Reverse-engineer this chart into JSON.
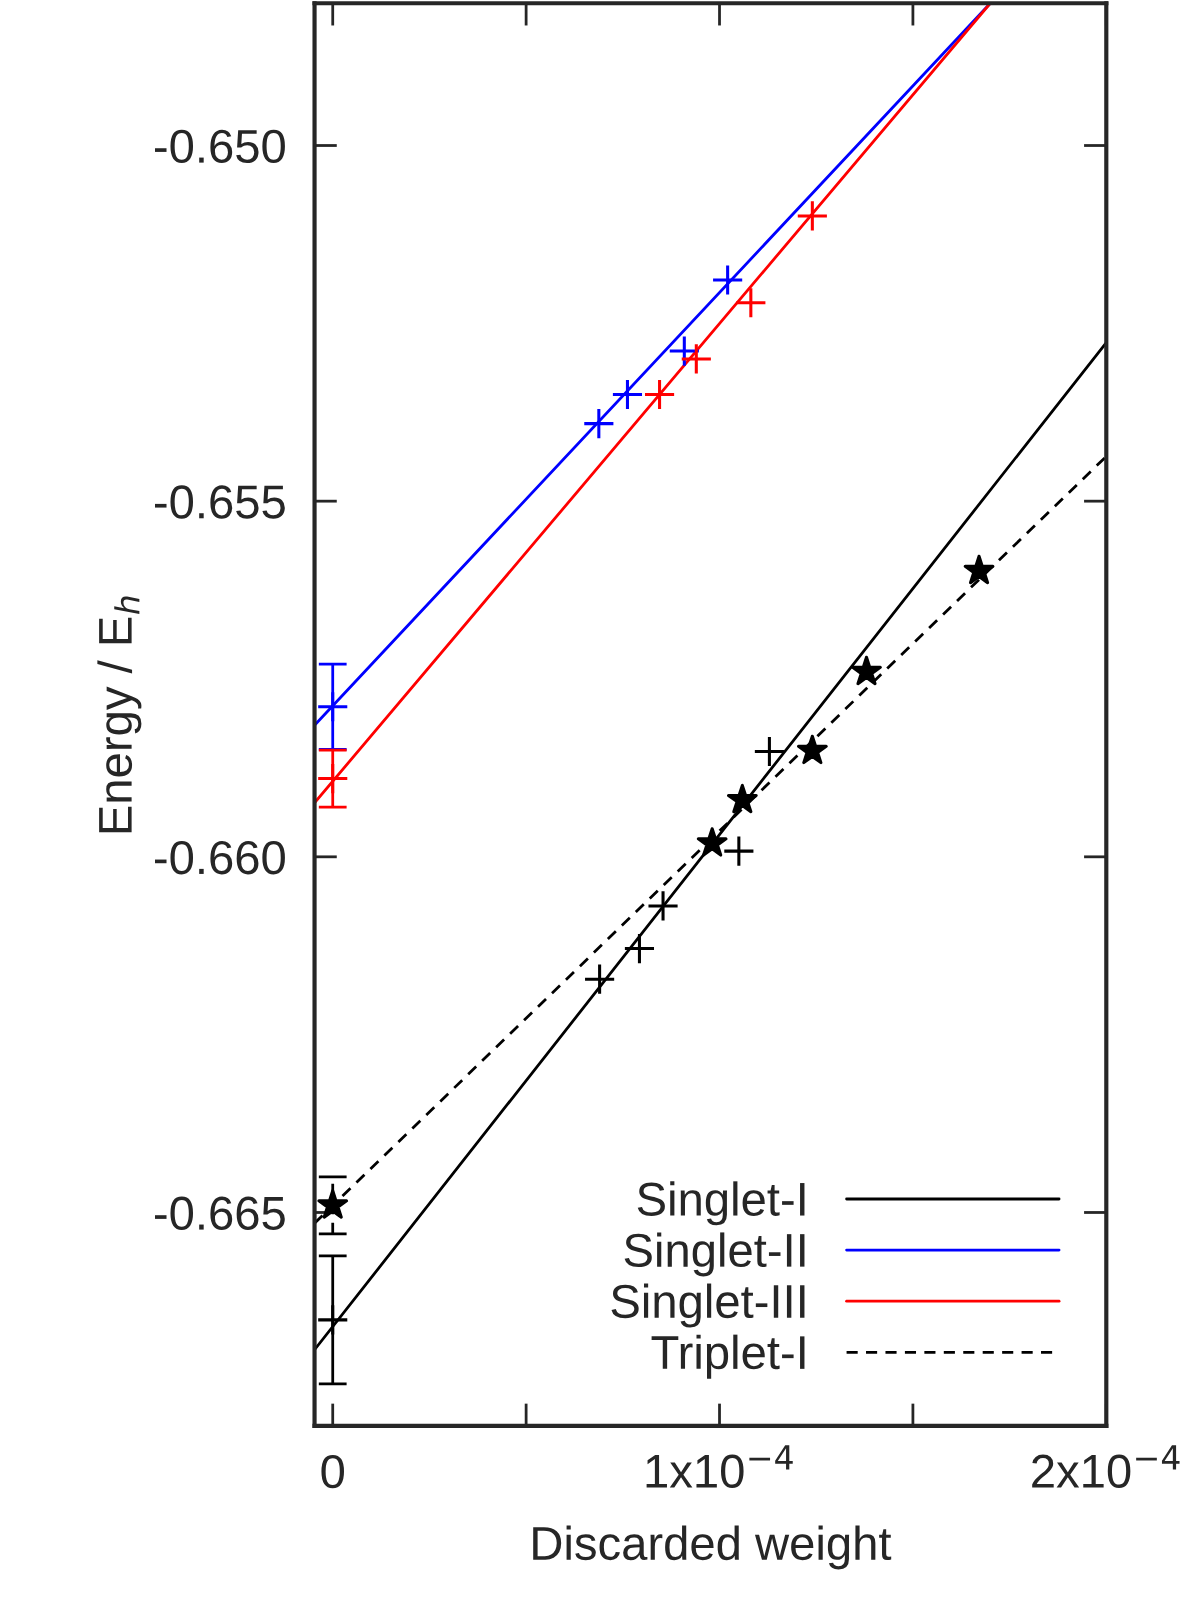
{
  "chart_data": {
    "type": "scatter",
    "xlabel": "Discarded weight",
    "ylabel": "Energy / E$_{h}$",
    "xlim": [
      -4.7e-06,
      0.0002
    ],
    "ylim": [
      -0.668,
      -0.648
    ],
    "xticks": [
      0,
      {
        "value": 5e-05,
        "label": null
      },
      {
        "value": 0.0001,
        "label": "1x10$^{−4}$"
      },
      {
        "value": 0.00015,
        "label": null
      },
      {
        "value": 0.0002,
        "label": "2x10$^{−4}$"
      }
    ],
    "yticks": [
      {
        "value": -0.665,
        "label": "-0.665"
      },
      {
        "value": -0.66,
        "label": "-0.660"
      },
      {
        "value": -0.655,
        "label": "-0.655"
      },
      {
        "value": -0.65,
        "label": "-0.650"
      }
    ],
    "grid": false,
    "legend": "bottom right",
    "series": [
      {
        "name": "Singlet-I",
        "color": "#000000",
        "marker": "cross",
        "line_style": "solid",
        "x": [
          0,
          6.9e-05,
          7.93e-05,
          8.54e-05,
          0.000105,
          0.0001129
        ],
        "values": [
          -0.66651,
          -0.66172,
          -0.66129,
          -0.66069,
          -0.65992,
          -0.65852
        ],
        "errors": [
          0.0009,
          null,
          null,
          null,
          null,
          null
        ]
      },
      {
        "name": "Singlet-II",
        "color": "#0000ff",
        "marker": "cross",
        "line_style": "solid",
        "x": [
          0,
          6.88e-05,
          7.62e-05,
          9.09e-05,
          0.0001021
        ],
        "values": [
          -0.65789,
          -0.65391,
          -0.6535,
          -0.65289,
          -0.65189
        ],
        "errors": [
          0.0006,
          null,
          null,
          null,
          null
        ]
      },
      {
        "name": "Singlet-III",
        "color": "#ff0000",
        "marker": "cross",
        "line_style": "solid",
        "x": [
          0,
          8.45e-05,
          9.4e-05,
          0.0001081,
          0.000124
        ],
        "values": [
          -0.6589,
          -0.6535,
          -0.653,
          -0.65221,
          -0.65099
        ],
        "errors": [
          0.0004,
          null,
          null,
          null,
          null
        ]
      },
      {
        "name": "Triplet-I",
        "color": "#000000",
        "marker": "star",
        "line_style": "dashed",
        "x": [
          0,
          9.81e-05,
          0.0001059,
          0.000124,
          0.000138,
          0.0001671
        ],
        "values": [
          -0.6649,
          -0.65981,
          -0.6592,
          -0.65851,
          -0.6574,
          -0.65598
        ],
        "errors": [
          0.0004,
          null,
          null,
          null,
          null,
          null
        ]
      },
      {
        "type": "line",
        "color": "#000000",
        "line_style": "solid",
        "x": [
          -4.7e-06,
          0.0002
        ],
        "values": [
          -0.66693,
          -0.65277
        ]
      },
      {
        "type": "line",
        "color": "#0000ff",
        "line_style": "solid",
        "x": [
          -4.7e-06,
          0.00017
        ],
        "values": [
          -0.65815,
          -0.648
        ]
      },
      {
        "type": "line",
        "color": "#ff0000",
        "line_style": "solid",
        "x": [
          -4.7e-06,
          0.00017
        ],
        "values": [
          -0.65924,
          -0.648
        ]
      },
      {
        "type": "line",
        "color": "#000000",
        "line_style": "dashed",
        "x": [
          -4.7e-06,
          0.0002
        ],
        "values": [
          -0.66515,
          -0.65437
        ]
      }
    ]
  }
}
